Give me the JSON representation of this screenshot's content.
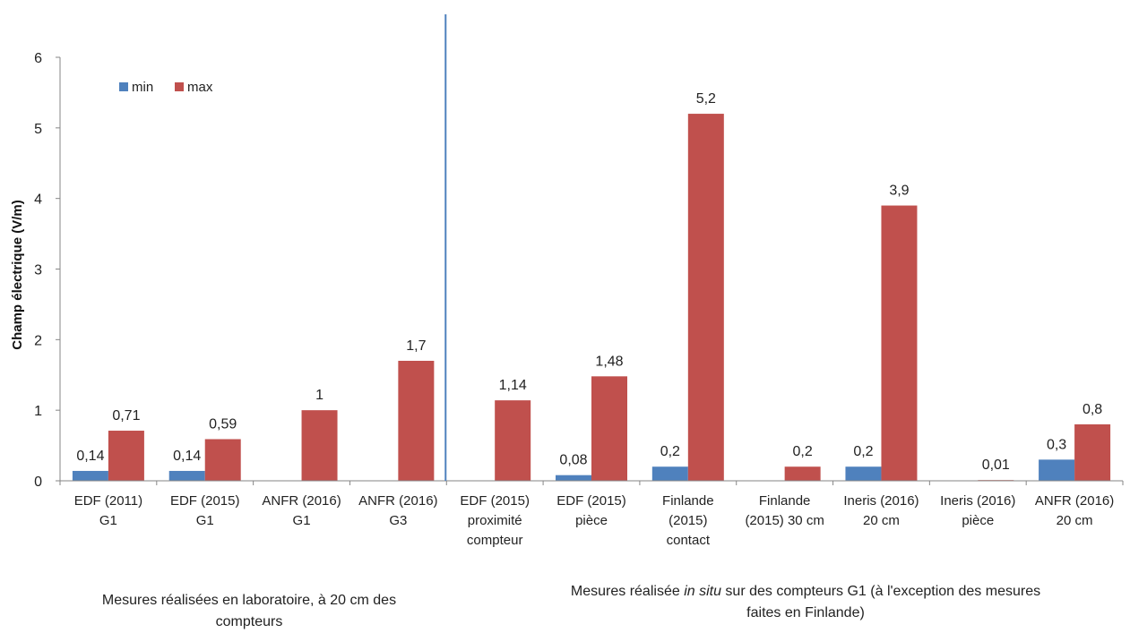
{
  "chart_data": {
    "type": "bar",
    "ylabel": "Champ électrique (V/m)",
    "ylim": [
      0,
      6
    ],
    "yticks": [
      0,
      1,
      2,
      3,
      4,
      5,
      6
    ],
    "grid": false,
    "legend_position": "top-left",
    "categories": [
      [
        "EDF (2011)",
        "G1"
      ],
      [
        "EDF (2015)",
        "G1"
      ],
      [
        "ANFR (2016)",
        "G1"
      ],
      [
        "ANFR (2016)",
        "G3"
      ],
      [
        "EDF (2015)",
        "proximité",
        "compteur"
      ],
      [
        "EDF (2015)",
        "pièce"
      ],
      [
        "Finlande",
        "(2015)",
        "contact"
      ],
      [
        "Finlande",
        "(2015) 30 cm"
      ],
      [
        "Ineris (2016)",
        "20 cm"
      ],
      [
        "Ineris (2016)",
        "pièce"
      ],
      [
        "ANFR (2016)",
        "20 cm"
      ]
    ],
    "series": [
      {
        "name": "min",
        "color": "#4F81BD",
        "values": [
          0.14,
          0.14,
          null,
          null,
          null,
          0.08,
          0.2,
          null,
          0.2,
          null,
          0.3
        ],
        "labels": [
          "0,14",
          "0,14",
          "",
          "",
          "",
          "0,08",
          "0,2",
          "",
          "0,2",
          "",
          "0,3"
        ]
      },
      {
        "name": "max",
        "color": "#C0504D",
        "values": [
          0.71,
          0.59,
          1,
          1.7,
          1.14,
          1.48,
          5.2,
          0.2,
          3.9,
          0.01,
          0.8
        ],
        "labels": [
          "0,71",
          "0,59",
          "1",
          "1,7",
          "1,14",
          "1,48",
          "5,2",
          "0,2",
          "3,9",
          "0,01",
          "0,8"
        ]
      }
    ],
    "separator_color": "#4F81BD",
    "group_notes": [
      {
        "lines": [
          [
            {
              "text": "Mesures réalisées en laboratoire, à 20 cm des"
            }
          ],
          [
            {
              "text": "compteurs"
            }
          ]
        ]
      },
      {
        "lines": [
          [
            {
              "text": "Mesures réalisée "
            },
            {
              "text": "in situ",
              "italic": true
            },
            {
              "text": " sur des compteurs G1 (à l'exception des mesures"
            }
          ],
          [
            {
              "text": "faites en Finlande)"
            }
          ]
        ]
      }
    ]
  }
}
